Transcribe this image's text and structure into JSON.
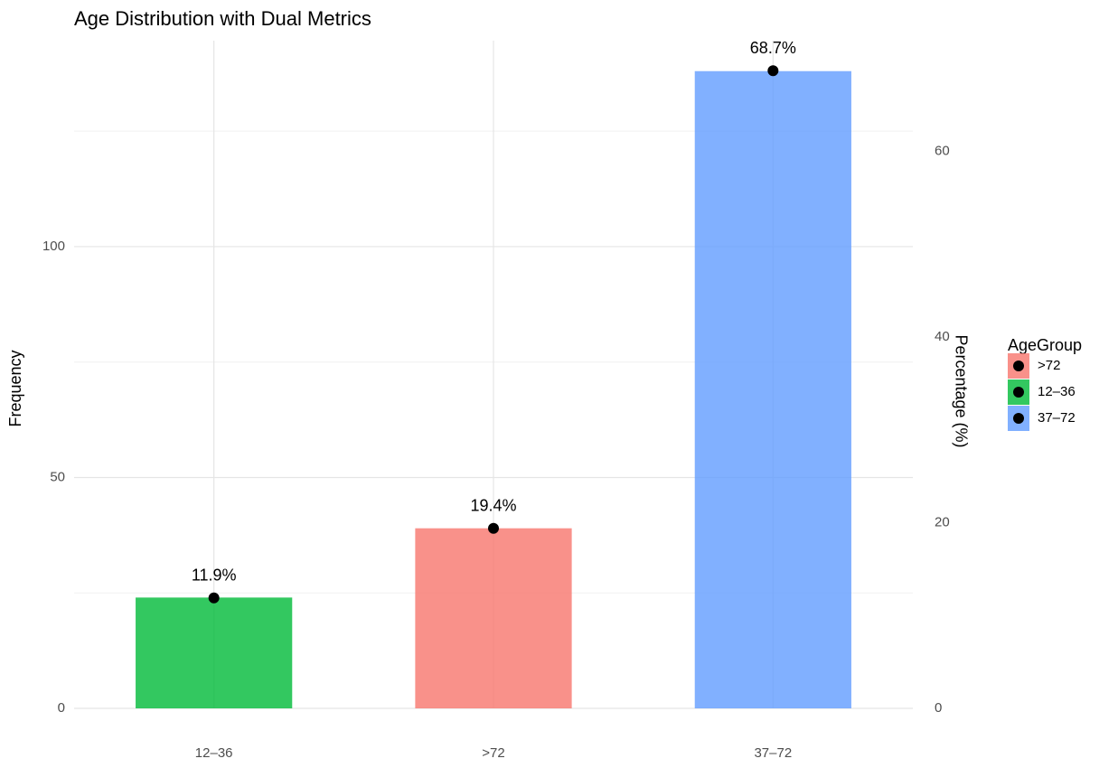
{
  "chart_data": {
    "type": "bar",
    "title": "Age Distribution with Dual Metrics",
    "y_label": "Frequency",
    "y2_label": "Percentage (%)",
    "categories": [
      "12–36",
      ">72",
      "37–72"
    ],
    "values": [
      24,
      39,
      138
    ],
    "colors": [
      "#00BA38",
      "#F8766D",
      "#619CFF"
    ],
    "percent": {
      "axis": "y2",
      "values": [
        11.9,
        19.4,
        68.7
      ],
      "value_labels": [
        "11.9%",
        "19.4%",
        "68.7%"
      ],
      "color": "#000000"
    },
    "ylim": [
      0,
      144.6
    ],
    "yticks": [
      0,
      50,
      100
    ],
    "yminor": [
      25,
      75,
      125
    ],
    "y2lim": [
      0,
      71.94
    ],
    "y2ticks": [
      0,
      20,
      40,
      60
    ],
    "grid": true,
    "legend_title": "AgeGroup",
    "legend": [
      {
        "name": ">72",
        "color": "#F8766D"
      },
      {
        "name": "12–36",
        "color": "#00BA38"
      },
      {
        "name": "37–72",
        "color": "#619CFF"
      }
    ]
  }
}
